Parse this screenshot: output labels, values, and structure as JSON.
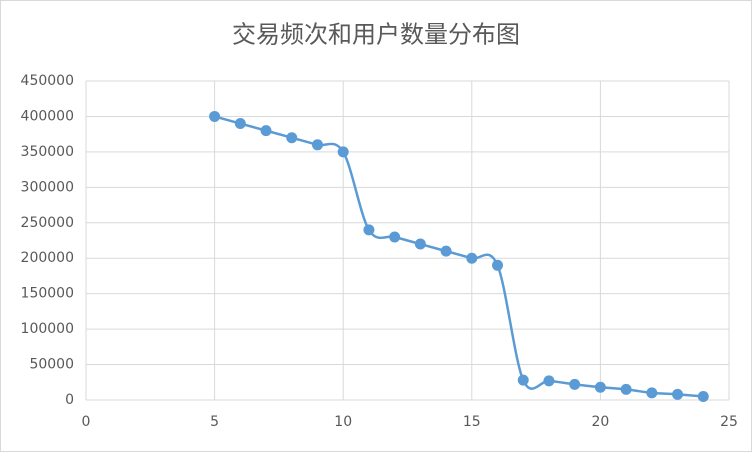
{
  "chart_data": {
    "type": "scatter",
    "title": "交易频次和用户数量分布图",
    "x": [
      5,
      6,
      7,
      8,
      9,
      10,
      11,
      12,
      13,
      14,
      15,
      16,
      17,
      18,
      19,
      20,
      21,
      22,
      23,
      24
    ],
    "series": [
      {
        "color": "#5b9bd5",
        "values": [
          400000,
          390000,
          380000,
          370000,
          360000,
          350000,
          240000,
          230000,
          220000,
          210000,
          200000,
          190000,
          28000,
          27000,
          22000,
          18000,
          15000,
          10000,
          8000,
          5000
        ]
      }
    ],
    "xlim": [
      0,
      25
    ],
    "xticks": [
      0,
      5,
      10,
      15,
      20,
      25
    ],
    "ylim": [
      0,
      450000
    ],
    "yticks": [
      0,
      50000,
      100000,
      150000,
      200000,
      250000,
      300000,
      350000,
      400000,
      450000
    ],
    "grid": true,
    "smooth": true
  }
}
